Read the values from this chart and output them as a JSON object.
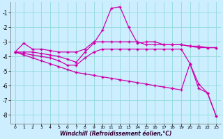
{
  "xlabel": "Windchill (Refroidissement éolien,°C)",
  "bg_color": "#cceeff",
  "grid_color": "#99dddd",
  "line_color": "#cc00aa",
  "xlim": [
    -0.5,
    23.5
  ],
  "ylim": [
    -8.6,
    -0.3
  ],
  "yticks": [
    -8,
    -7,
    -6,
    -5,
    -4,
    -3,
    -2,
    -1
  ],
  "xticks": [
    0,
    1,
    2,
    3,
    4,
    5,
    6,
    7,
    8,
    9,
    10,
    11,
    12,
    13,
    14,
    15,
    16,
    17,
    18,
    19,
    20,
    21,
    22,
    23
  ],
  "line1_x": [
    0,
    1,
    2,
    3,
    4,
    5,
    6,
    7,
    8,
    9,
    10,
    11,
    12,
    13,
    14,
    15,
    16,
    17,
    18,
    19,
    20,
    21,
    22,
    23
  ],
  "line1_y": [
    -3.7,
    -3.1,
    -3.5,
    -3.5,
    -3.6,
    -3.7,
    -3.7,
    -3.7,
    -3.5,
    -3.0,
    -3.0,
    -3.0,
    -3.0,
    -3.0,
    -3.0,
    -3.2,
    -3.2,
    -3.2,
    -3.2,
    -3.2,
    -3.3,
    -3.3,
    -3.4,
    -3.4
  ],
  "line2_x": [
    0,
    1,
    2,
    3,
    4,
    5,
    6,
    7,
    8,
    9,
    10,
    11,
    12,
    13,
    14,
    15,
    16,
    17,
    18,
    19,
    20,
    21,
    22,
    23
  ],
  "line2_y": [
    -3.7,
    -3.7,
    -3.7,
    -3.8,
    -3.9,
    -4.0,
    -4.2,
    -4.4,
    -3.7,
    -3.1,
    -2.2,
    -0.7,
    -0.6,
    -2.0,
    -3.1,
    -3.0,
    -3.0,
    -3.2,
    -3.2,
    -3.2,
    -3.3,
    -3.4,
    -3.4,
    -3.4
  ],
  "line3_x": [
    0,
    1,
    2,
    3,
    4,
    5,
    6,
    7,
    8,
    9,
    10,
    11,
    12,
    13,
    14,
    15,
    16,
    17,
    18,
    19,
    20,
    21,
    22,
    23
  ],
  "line3_y": [
    -3.7,
    -3.8,
    -3.9,
    -4.0,
    -4.1,
    -4.3,
    -4.6,
    -4.6,
    -4.1,
    -3.7,
    -3.5,
    -3.5,
    -3.5,
    -3.5,
    -3.5,
    -3.5,
    -3.5,
    -3.5,
    -3.5,
    -3.5,
    -4.5,
    -5.9,
    -6.5,
    -8.1
  ],
  "line4_x": [
    0,
    1,
    2,
    3,
    4,
    5,
    6,
    7,
    8,
    9,
    10,
    11,
    12,
    13,
    14,
    15,
    16,
    17,
    18,
    19,
    20,
    21,
    22,
    23
  ],
  "line4_y": [
    -3.7,
    -3.9,
    -4.1,
    -4.3,
    -4.5,
    -4.7,
    -4.9,
    -5.1,
    -5.2,
    -5.3,
    -5.4,
    -5.5,
    -5.6,
    -5.7,
    -5.8,
    -5.9,
    -6.0,
    -6.1,
    -6.2,
    -6.3,
    -4.5,
    -6.2,
    -6.5,
    -8.1
  ]
}
